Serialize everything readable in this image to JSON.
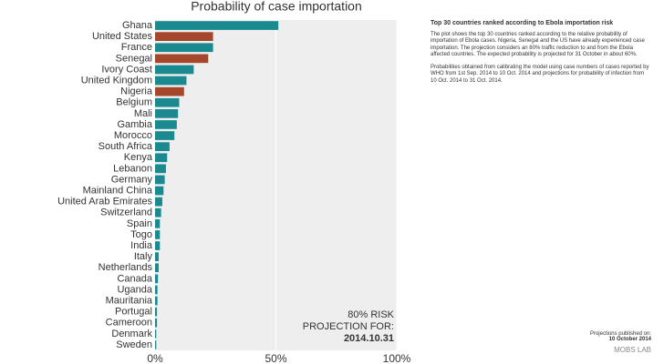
{
  "chart_data": {
    "type": "hbar",
    "title": "Probability of case importation",
    "categories": [
      "Ghana",
      "United States",
      "France",
      "Senegal",
      "Ivory Coast",
      "United Kingdom",
      "Nigeria",
      "Belgium",
      "Mali",
      "Gambia",
      "Morocco",
      "South Africa",
      "Kenya",
      "Lebanon",
      "Germany",
      "Mainland China",
      "United Arab Emirates",
      "Switzerland",
      "Spain",
      "Togo",
      "India",
      "Italy",
      "Netherlands",
      "Canada",
      "Uganda",
      "Mauritania",
      "Portugal",
      "Cameroon",
      "Denmark",
      "Sweden"
    ],
    "values": [
      51,
      24,
      24,
      22,
      16,
      13,
      12,
      10,
      9.5,
      9,
      8,
      6,
      5,
      4.5,
      4,
      3.5,
      3,
      2.5,
      2,
      2,
      2,
      1.5,
      1.5,
      1.2,
      1,
      1,
      0.8,
      0.8,
      0.5,
      0.5
    ],
    "colors": [
      "#1b8a90",
      "#a4472b",
      "#1b8a90",
      "#a4472b",
      "#1b8a90",
      "#1b8a90",
      "#a4472b",
      "#1b8a90",
      "#1b8a90",
      "#1b8a90",
      "#1b8a90",
      "#1b8a90",
      "#1b8a90",
      "#1b8a90",
      "#1b8a90",
      "#1b8a90",
      "#1b8a90",
      "#1b8a90",
      "#1b8a90",
      "#1b8a90",
      "#1b8a90",
      "#1b8a90",
      "#1b8a90",
      "#1b8a90",
      "#1b8a90",
      "#1b8a90",
      "#1b8a90",
      "#1b8a90",
      "#1b8a90",
      "#1b8a90"
    ],
    "xlim": [
      0,
      100
    ],
    "xticks": [
      {
        "value": 0,
        "label": "0%"
      },
      {
        "value": 50,
        "label": "50%"
      },
      {
        "value": 100,
        "label": "100%"
      }
    ],
    "grid": true,
    "annotations": [
      "80% RISK",
      "PROJECTION FOR:",
      "2014.10.31"
    ]
  },
  "side_panel": {
    "heading": "Top 30 countries ranked according to Ebola importation risk",
    "paragraphs": [
      "The plot shows the top 30 countries ranked according to the relative probability of importation of Ebola cases. Nigeria, Senegal and the US have already experienced case importation. The projection considers an 80% traffic reduction to and from the Ebola affected countries. The expected probability is projected for 31 October in about 60%.",
      "Probabilities obtained from calibrating the model using case numbers of cases reported by WHO from 1st Sep. 2014 to 10 Oct. 2014 and projections for probability of infection from 10 Oct. 2014 to 31 Oct. 2014."
    ]
  },
  "footer": {
    "published_label": "Projections published on:",
    "published_date": "10 October 2014",
    "logo": "MOBS LAB"
  }
}
